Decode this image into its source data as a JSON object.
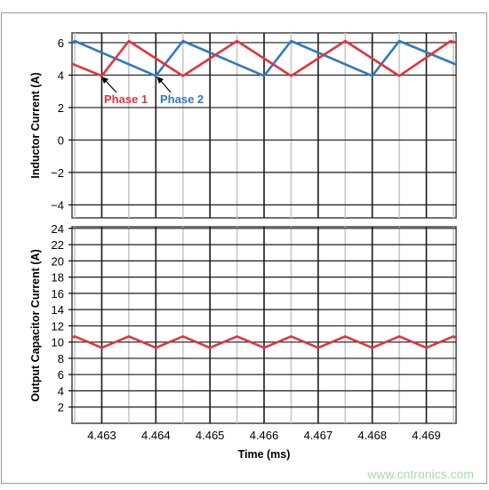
{
  "colors": {
    "phase1": "#e23340",
    "phase2": "#2f79c2",
    "capacitor": "#e23340",
    "grid": "#111111",
    "frame": "#444444",
    "background": "#ffffff"
  },
  "watermark": "www.cntronics.com",
  "chart_data": [
    {
      "type": "line",
      "ylabel": "Inductor Current (A)",
      "xlim": [
        4.46245,
        4.46955
      ],
      "ylim": [
        -4.8,
        6.6
      ],
      "x_ticks": [
        4.463,
        4.464,
        4.465,
        4.466,
        4.467,
        4.468,
        4.469
      ],
      "y_ticks": [
        "6",
        "4",
        "2",
        "0",
        "−2",
        "−4"
      ],
      "y_tick_values": [
        6,
        4,
        2,
        0,
        -2,
        -4
      ],
      "grid": true,
      "series": [
        {
          "name": "Phase 1",
          "x": [
            4.46245,
            4.463,
            4.4635,
            4.4645,
            4.4655,
            4.4665,
            4.4675,
            4.4685,
            4.46945,
            4.46955
          ],
          "y": [
            4.7,
            3.95,
            6.1,
            3.95,
            6.1,
            3.95,
            6.1,
            3.95,
            6.1,
            6.0
          ]
        },
        {
          "name": "Phase 2",
          "x": [
            4.46245,
            4.4625,
            4.464,
            4.4645,
            4.466,
            4.4665,
            4.468,
            4.4685,
            4.46955
          ],
          "y": [
            5.95,
            6.1,
            3.95,
            6.1,
            3.95,
            6.1,
            3.95,
            6.1,
            4.65
          ]
        }
      ],
      "annotations": [
        {
          "text": "Phase 1",
          "series": "Phase 1",
          "points_to": [
            4.463,
            3.95
          ]
        },
        {
          "text": "Phase 2",
          "series": "Phase 2",
          "points_to": [
            4.464,
            3.95
          ]
        }
      ]
    },
    {
      "type": "line",
      "ylabel": "Output Capacitor Current (A)",
      "xlabel": "Time (ms)",
      "xlim": [
        4.46245,
        4.46955
      ],
      "ylim": [
        0,
        24.2
      ],
      "x_ticks": [
        4.463,
        4.464,
        4.465,
        4.466,
        4.467,
        4.468,
        4.469
      ],
      "x_tick_labels": [
        "4.463",
        "4.464",
        "4.465",
        "4.466",
        "4.467",
        "4.468",
        "4.469"
      ],
      "y_ticks": [
        2,
        4,
        6,
        8,
        10,
        12,
        14,
        16,
        18,
        20,
        22,
        24
      ],
      "grid": true,
      "series": [
        {
          "x": [
            4.46245,
            4.4625,
            4.463,
            4.4635,
            4.464,
            4.4645,
            4.465,
            4.4655,
            4.466,
            4.4665,
            4.467,
            4.4675,
            4.468,
            4.4685,
            4.469,
            4.4695,
            4.46955
          ],
          "y": [
            10.55,
            10.7,
            9.3,
            10.7,
            9.3,
            10.7,
            9.3,
            10.7,
            9.3,
            10.7,
            9.3,
            10.7,
            9.3,
            10.7,
            9.3,
            10.7,
            10.5
          ]
        }
      ]
    }
  ]
}
